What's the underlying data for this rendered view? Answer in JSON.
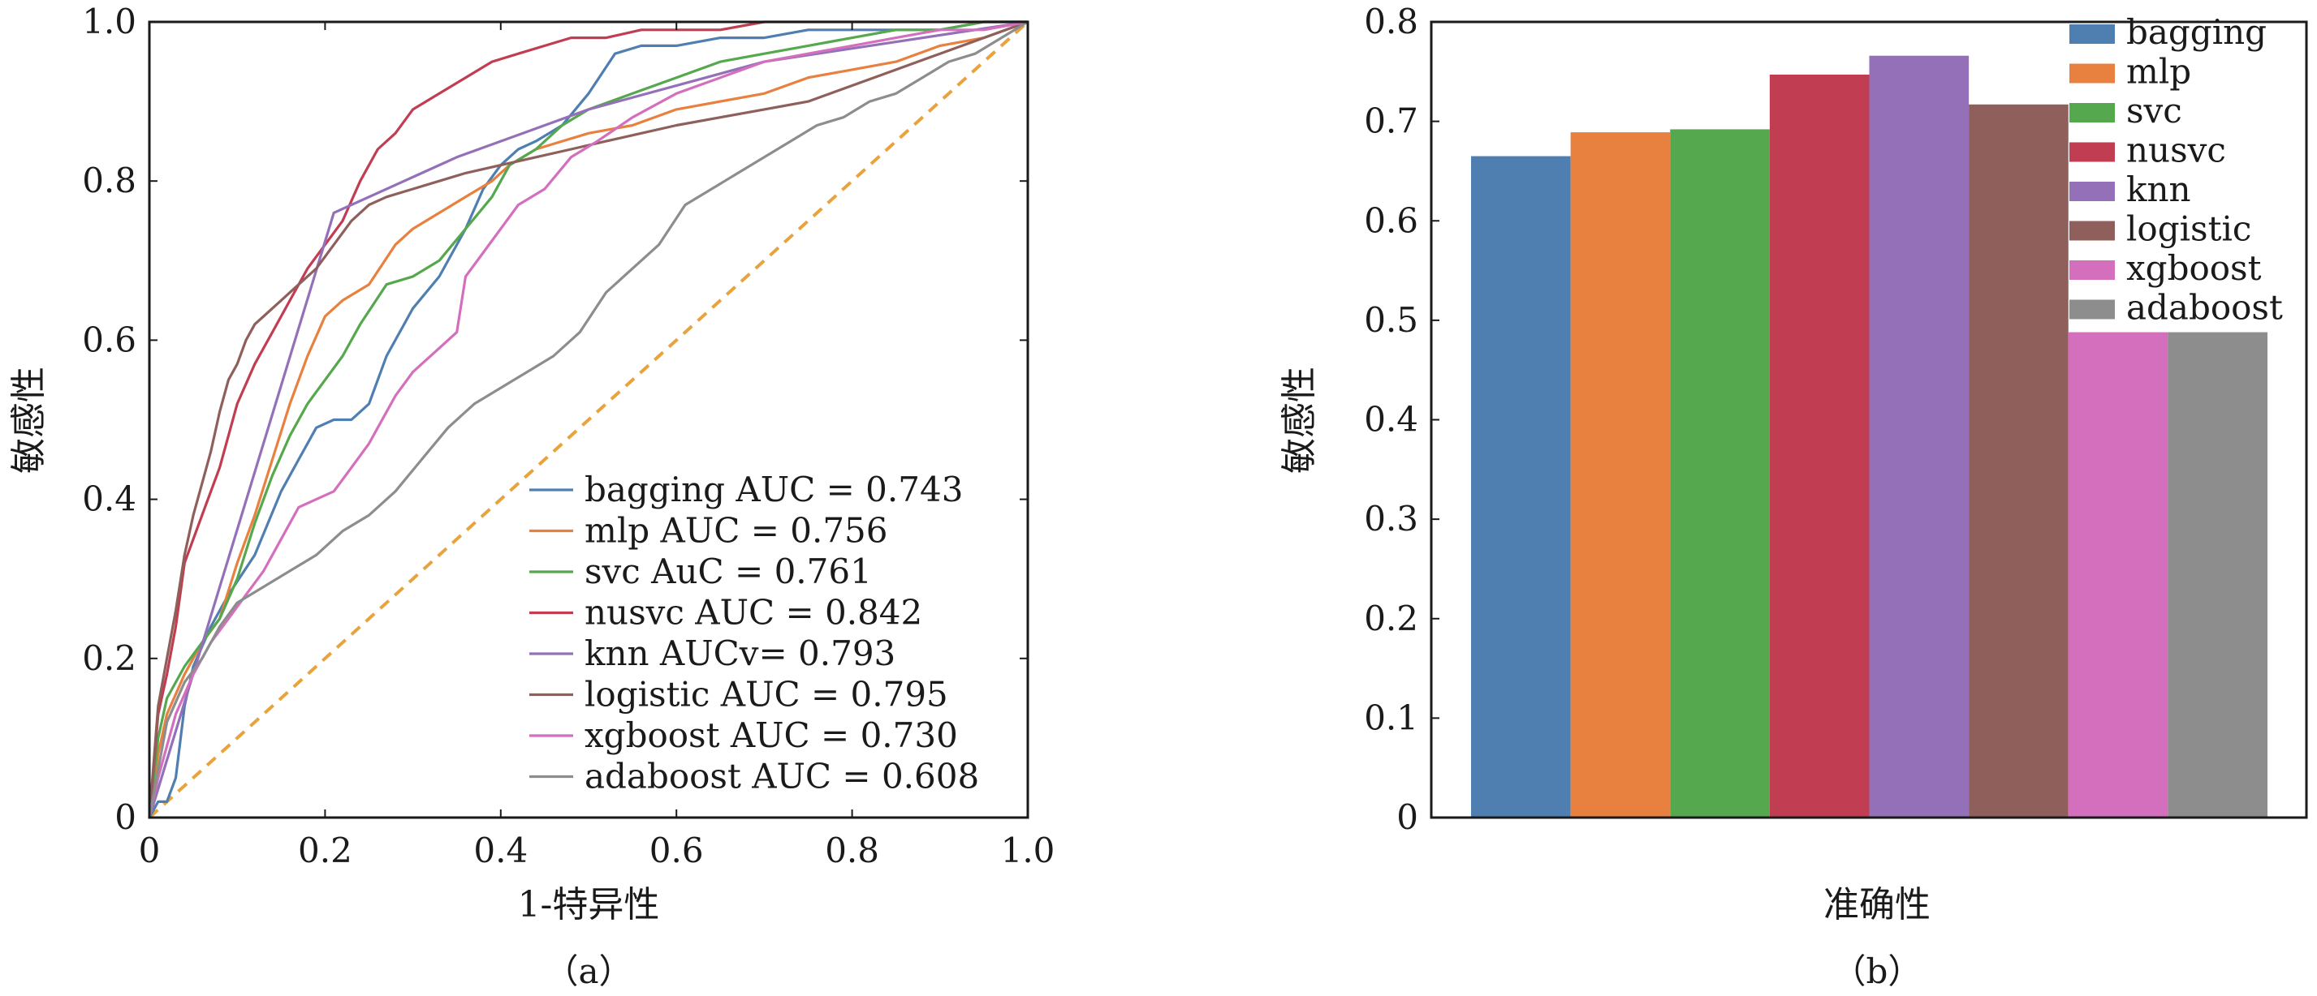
{
  "chart_data": [
    {
      "type": "line",
      "xlabel": "1-特异性",
      "ylabel": "敏感性",
      "caption": "（a）",
      "xlim": [
        0,
        1
      ],
      "ylim": [
        0,
        1
      ],
      "xticks": [
        "0",
        "0.2",
        "0.4",
        "0.6",
        "0.8",
        "1.0"
      ],
      "yticks": [
        "0",
        "0.2",
        "0.4",
        "0.6",
        "0.8",
        "1.0"
      ],
      "grid": false,
      "legend_position": "bottom-right",
      "reference_line": {
        "x": [
          0,
          1
        ],
        "y": [
          0,
          1
        ],
        "color": "#e8a33d",
        "style": "dashed"
      },
      "series": [
        {
          "name": "bagging",
          "legend": "bagging AUC = 0.743",
          "color": "#4f7fb0",
          "x": [
            0,
            0.01,
            0.02,
            0.03,
            0.04,
            0.05,
            0.07,
            0.09,
            0.12,
            0.15,
            0.17,
            0.19,
            0.21,
            0.23,
            0.25,
            0.27,
            0.3,
            0.33,
            0.36,
            0.38,
            0.4,
            0.42,
            0.44,
            0.47,
            0.5,
            0.53,
            0.56,
            0.6,
            0.65,
            0.7,
            0.75,
            0.8,
            0.85,
            0.9,
            0.95,
            1.0
          ],
          "y": [
            0,
            0.02,
            0.02,
            0.05,
            0.14,
            0.19,
            0.24,
            0.28,
            0.33,
            0.41,
            0.45,
            0.49,
            0.5,
            0.5,
            0.52,
            0.58,
            0.64,
            0.68,
            0.74,
            0.79,
            0.82,
            0.84,
            0.85,
            0.87,
            0.91,
            0.96,
            0.97,
            0.97,
            0.98,
            0.98,
            0.99,
            0.99,
            0.99,
            0.99,
            1.0,
            1.0
          ]
        },
        {
          "name": "mlp",
          "legend": "mlp AUC = 0.756",
          "color": "#e8803f",
          "x": [
            0,
            0.01,
            0.02,
            0.04,
            0.06,
            0.08,
            0.1,
            0.12,
            0.14,
            0.16,
            0.18,
            0.2,
            0.22,
            0.25,
            0.28,
            0.3,
            0.33,
            0.36,
            0.39,
            0.41,
            0.44,
            0.47,
            0.5,
            0.55,
            0.6,
            0.65,
            0.7,
            0.75,
            0.8,
            0.85,
            0.9,
            0.95,
            1.0
          ],
          "y": [
            0,
            0.08,
            0.13,
            0.18,
            0.22,
            0.25,
            0.32,
            0.38,
            0.45,
            0.52,
            0.58,
            0.63,
            0.65,
            0.67,
            0.72,
            0.74,
            0.76,
            0.78,
            0.8,
            0.82,
            0.84,
            0.85,
            0.86,
            0.87,
            0.89,
            0.9,
            0.91,
            0.93,
            0.94,
            0.95,
            0.97,
            0.98,
            1.0
          ]
        },
        {
          "name": "svc",
          "legend": "svc AuC = 0.761",
          "color": "#55a84e",
          "x": [
            0,
            0.01,
            0.02,
            0.04,
            0.06,
            0.08,
            0.1,
            0.12,
            0.14,
            0.16,
            0.18,
            0.2,
            0.22,
            0.24,
            0.27,
            0.3,
            0.33,
            0.36,
            0.39,
            0.41,
            0.44,
            0.47,
            0.5,
            0.55,
            0.6,
            0.65,
            0.7,
            0.75,
            0.8,
            0.85,
            0.9,
            0.95,
            1.0
          ],
          "y": [
            0,
            0.1,
            0.15,
            0.19,
            0.22,
            0.25,
            0.3,
            0.37,
            0.43,
            0.48,
            0.52,
            0.55,
            0.58,
            0.62,
            0.67,
            0.68,
            0.7,
            0.74,
            0.78,
            0.82,
            0.84,
            0.87,
            0.89,
            0.91,
            0.93,
            0.95,
            0.96,
            0.97,
            0.98,
            0.99,
            0.99,
            1.0,
            1.0
          ]
        },
        {
          "name": "nusvc",
          "legend": "nusvc AUC = 0.842",
          "color": "#c13d52",
          "x": [
            0,
            0.01,
            0.02,
            0.03,
            0.04,
            0.06,
            0.08,
            0.1,
            0.12,
            0.14,
            0.16,
            0.18,
            0.2,
            0.22,
            0.24,
            0.26,
            0.28,
            0.3,
            0.33,
            0.36,
            0.39,
            0.42,
            0.45,
            0.48,
            0.52,
            0.56,
            0.6,
            0.65,
            0.7,
            0.75,
            0.8,
            0.85,
            0.9,
            0.95,
            1.0
          ],
          "y": [
            0,
            0.13,
            0.18,
            0.24,
            0.32,
            0.38,
            0.44,
            0.52,
            0.57,
            0.61,
            0.65,
            0.69,
            0.72,
            0.75,
            0.8,
            0.84,
            0.86,
            0.89,
            0.91,
            0.93,
            0.95,
            0.96,
            0.97,
            0.98,
            0.98,
            0.99,
            0.99,
            0.99,
            1.0,
            1.0,
            1.0,
            1.0,
            1.0,
            1.0,
            1.0
          ]
        },
        {
          "name": "knn",
          "legend": "knn AUCv= 0.793",
          "color": "#9370b8",
          "x": [
            0,
            0.21,
            0.35,
            0.5,
            0.7,
            1.0
          ],
          "y": [
            0,
            0.76,
            0.83,
            0.89,
            0.95,
            1.0
          ]
        },
        {
          "name": "logistic",
          "legend": "logistic AUC = 0.795",
          "color": "#8e5f5b",
          "x": [
            0,
            0.01,
            0.02,
            0.03,
            0.04,
            0.05,
            0.06,
            0.07,
            0.08,
            0.09,
            0.1,
            0.11,
            0.12,
            0.13,
            0.15,
            0.17,
            0.19,
            0.21,
            0.23,
            0.25,
            0.27,
            0.3,
            0.33,
            0.36,
            0.4,
            0.44,
            0.48,
            0.52,
            0.56,
            0.6,
            0.65,
            0.7,
            0.75,
            0.8,
            0.85,
            0.9,
            0.95,
            1.0
          ],
          "y": [
            0,
            0.14,
            0.2,
            0.26,
            0.33,
            0.38,
            0.42,
            0.46,
            0.51,
            0.55,
            0.57,
            0.6,
            0.62,
            0.63,
            0.65,
            0.67,
            0.69,
            0.72,
            0.75,
            0.77,
            0.78,
            0.79,
            0.8,
            0.81,
            0.82,
            0.83,
            0.84,
            0.85,
            0.86,
            0.87,
            0.88,
            0.89,
            0.9,
            0.92,
            0.94,
            0.96,
            0.98,
            1.0
          ]
        },
        {
          "name": "xgboost",
          "legend": "xgboost AUC = 0.730",
          "color": "#d36fbd",
          "x": [
            0,
            0.01,
            0.02,
            0.03,
            0.05,
            0.07,
            0.09,
            0.11,
            0.13,
            0.15,
            0.17,
            0.19,
            0.21,
            0.23,
            0.25,
            0.28,
            0.3,
            0.33,
            0.35,
            0.36,
            0.38,
            0.4,
            0.42,
            0.45,
            0.48,
            0.51,
            0.55,
            0.6,
            0.65,
            0.7,
            0.75,
            0.8,
            0.85,
            0.9,
            0.95,
            1.0
          ],
          "y": [
            0,
            0.05,
            0.09,
            0.13,
            0.18,
            0.22,
            0.25,
            0.28,
            0.31,
            0.35,
            0.39,
            0.4,
            0.41,
            0.44,
            0.47,
            0.53,
            0.56,
            0.59,
            0.61,
            0.68,
            0.71,
            0.74,
            0.77,
            0.79,
            0.83,
            0.85,
            0.88,
            0.91,
            0.93,
            0.95,
            0.96,
            0.97,
            0.98,
            0.99,
            0.99,
            1.0
          ]
        },
        {
          "name": "adaboost",
          "legend": "adaboost AUC = 0.608",
          "color": "#8d8d8d",
          "x": [
            0,
            0.02,
            0.04,
            0.06,
            0.08,
            0.1,
            0.13,
            0.16,
            0.19,
            0.22,
            0.25,
            0.28,
            0.31,
            0.34,
            0.37,
            0.4,
            0.43,
            0.46,
            0.49,
            0.52,
            0.55,
            0.58,
            0.61,
            0.64,
            0.67,
            0.7,
            0.73,
            0.76,
            0.79,
            0.82,
            0.85,
            0.88,
            0.91,
            0.94,
            0.97,
            1.0
          ],
          "y": [
            0,
            0.12,
            0.17,
            0.2,
            0.24,
            0.27,
            0.29,
            0.31,
            0.33,
            0.36,
            0.38,
            0.41,
            0.45,
            0.49,
            0.52,
            0.54,
            0.56,
            0.58,
            0.61,
            0.66,
            0.69,
            0.72,
            0.77,
            0.79,
            0.81,
            0.83,
            0.85,
            0.87,
            0.88,
            0.9,
            0.91,
            0.93,
            0.95,
            0.96,
            0.98,
            1.0
          ]
        }
      ]
    },
    {
      "type": "bar",
      "xlabel": "准确性",
      "ylabel": "敏感性",
      "caption": "（b）",
      "ylim": [
        0,
        0.8
      ],
      "yticks": [
        "0",
        "0.1",
        "0.2",
        "0.3",
        "0.4",
        "0.5",
        "0.6",
        "0.7",
        "0.8"
      ],
      "grid": false,
      "legend_position": "top-right",
      "categories": [
        "bagging",
        "mlp",
        "svc",
        "nusvc",
        "knn",
        "logistic",
        "xgboost",
        "adaboost"
      ],
      "values": [
        0.665,
        0.689,
        0.692,
        0.747,
        0.766,
        0.717,
        0.488,
        0.488
      ],
      "colors": [
        "#4f7fb0",
        "#e8803f",
        "#55a84e",
        "#c13d52",
        "#9370b8",
        "#8e5f5b",
        "#d36fbd",
        "#8d8d8d"
      ]
    }
  ]
}
